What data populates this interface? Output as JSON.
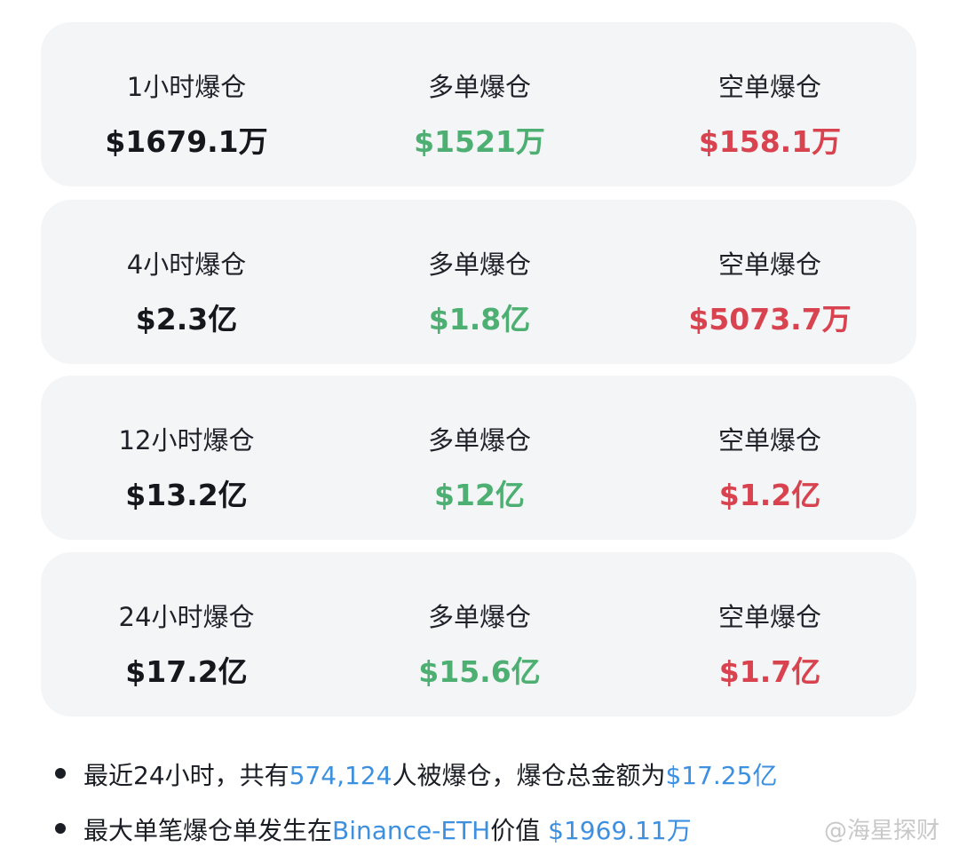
{
  "colors": {
    "long": "#4daf72",
    "short": "#d8434f",
    "highlight": "#3d8fe0",
    "card_bg": "#f4f5f7"
  },
  "cards": [
    {
      "period_label": "1小时爆仓",
      "total": "$1679.1万",
      "long_label": "多单爆仓",
      "long": "$1521万",
      "short_label": "空单爆仓",
      "short": "$158.1万"
    },
    {
      "period_label": "4小时爆仓",
      "total": "$2.3亿",
      "long_label": "多单爆仓",
      "long": "$1.8亿",
      "short_label": "空单爆仓",
      "short": "$5073.7万"
    },
    {
      "period_label": "12小时爆仓",
      "total": "$13.2亿",
      "long_label": "多单爆仓",
      "long": "$12亿",
      "short_label": "空单爆仓",
      "short": "$1.2亿"
    },
    {
      "period_label": "24小时爆仓",
      "total": "$17.2亿",
      "long_label": "多单爆仓",
      "long": "$15.6亿",
      "short_label": "空单爆仓",
      "short": "$1.7亿"
    }
  ],
  "notes": [
    {
      "t1": "最近24小时，共有",
      "h1": "574,124",
      "t2": "人被爆仓，爆仓总金额为",
      "h2": "$17.25亿"
    },
    {
      "t1": "最大单笔爆仓单发生在",
      "h1": "Binance-ETH",
      "t2": "价值 ",
      "h2": "$1969.11万"
    }
  ],
  "watermark": "@海星探财"
}
